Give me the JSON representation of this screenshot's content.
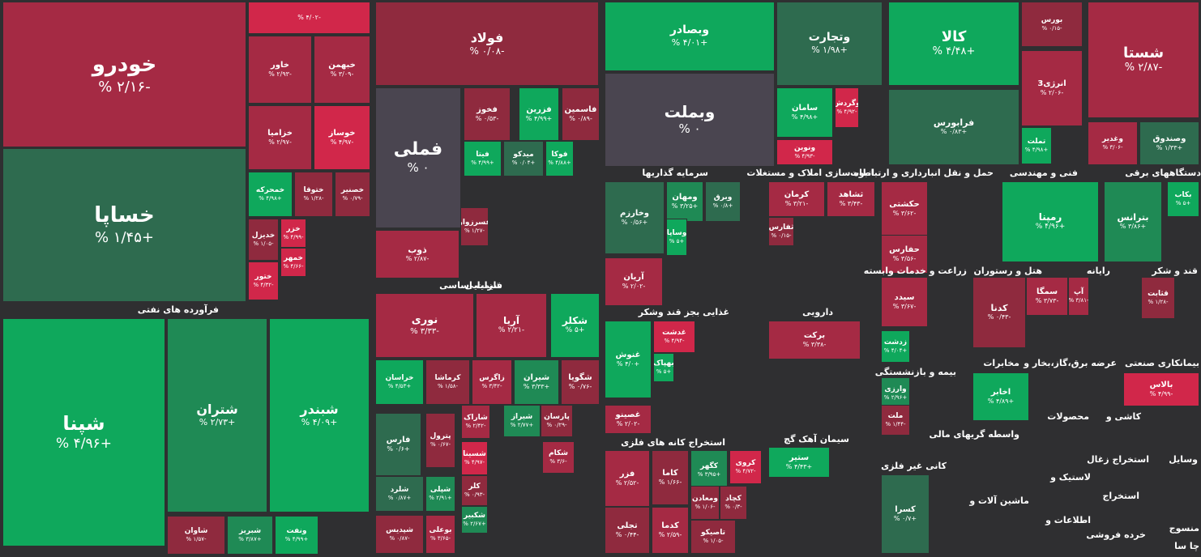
{
  "colors": {
    "green": "#0fa85c",
    "green_mid": "#1f8a55",
    "green_dark": "#2e6b4f",
    "red": "#d1274a",
    "red_mid": "#a52a44",
    "red_dark": "#8f2a3e",
    "neutral": "#4a4550",
    "bg": "#2f2f31"
  },
  "chart_data": {
    "type": "heatmap",
    "title": "",
    "sectors": [
      {
        "name": "فرآورده های نفتی"
      },
      {
        "name": "فلزات اساسی"
      },
      {
        "name": "شیمیایی"
      },
      {
        "name": "سرمایه گذاریها"
      },
      {
        "name": "انبوه سازی املاک و مستغلات"
      },
      {
        "name": "حمل و نقل انبارداری و ارتباطات"
      },
      {
        "name": "فنی و مهندسی"
      },
      {
        "name": "دستگاههای برقی"
      },
      {
        "name": "غذایی بجز قند وشکر"
      },
      {
        "name": "دارویی"
      },
      {
        "name": "استخراج کانه های فلزی"
      },
      {
        "name": "سیمان آهک گچ"
      },
      {
        "name": "زراعت و خدمات وابسته"
      },
      {
        "name": "هتل و رستوران"
      },
      {
        "name": "رایانه"
      },
      {
        "name": "قند و شکر"
      },
      {
        "name": "بیمه و بازنشستگی"
      },
      {
        "name": "مخابرات"
      },
      {
        "name": "عرضه برق،گاز،بخار و"
      },
      {
        "name": "بیمانکاری صنعتی"
      },
      {
        "name": "محصولات"
      },
      {
        "name": "کاشی و"
      },
      {
        "name": "واسطه گریهای مالی"
      },
      {
        "name": "کانی غیر فلزی"
      },
      {
        "name": "استخراج زغال"
      },
      {
        "name": "لاستیک و"
      },
      {
        "name": "وسایل"
      },
      {
        "name": "ماشین آلات و"
      },
      {
        "name": "استخراج"
      },
      {
        "name": "اطلاعات و"
      },
      {
        "name": "خرده فروشی"
      },
      {
        "name": "منسوج"
      },
      {
        "name": "چا سا"
      }
    ],
    "tiles": [
      {
        "symbol": "خودرو",
        "change": "-۲/۱۶ %",
        "value": -2.16
      },
      {
        "symbol": "خساپا",
        "change": "+۱/۴۵ %",
        "value": 1.45
      },
      {
        "symbol": "",
        "change": "-۴/۰۲ %",
        "value": -4.02
      },
      {
        "symbol": "خاور",
        "change": "-۲/۹۳ %",
        "value": -2.93
      },
      {
        "symbol": "خبهمن",
        "change": "-۳/۰۹ %",
        "value": -3.09
      },
      {
        "symbol": "خزامیا",
        "change": "-۲/۹۷ %",
        "value": -2.97
      },
      {
        "symbol": "خوساز",
        "change": "-۴/۹۷ %",
        "value": -4.97
      },
      {
        "symbol": "خمحرکه",
        "change": "+۴/۹۸ %",
        "value": 4.98
      },
      {
        "symbol": "ختوقا",
        "change": "-۱/۲۸ %",
        "value": -1.28
      },
      {
        "symbol": "خصنیر",
        "change": "-۰/۷۹ %",
        "value": -0.79
      },
      {
        "symbol": "خدیزل",
        "change": "-۱/۰۵ %",
        "value": -1.05
      },
      {
        "symbol": "خزر",
        "change": "-۴/۹۹ %",
        "value": -4.99
      },
      {
        "symbol": "خمهر",
        "change": "-۴/۶۶ %",
        "value": -4.66
      },
      {
        "symbol": "ختور",
        "change": "-۴/۳۲ %",
        "value": -4.32
      },
      {
        "symbol": "فولاد",
        "change": "-۰/۰۸ %",
        "value": -0.08
      },
      {
        "symbol": "فملی",
        "change": "۰ %",
        "value": 0
      },
      {
        "symbol": "فخوز",
        "change": "-۰/۵۳ %",
        "value": -0.53
      },
      {
        "symbol": "فزرین",
        "change": "+۴/۹۹ %",
        "value": 4.99
      },
      {
        "symbol": "فاسمین",
        "change": "-۰/۸۹ %",
        "value": -0.89
      },
      {
        "symbol": "فیتا",
        "change": "+۴/۹۹ %",
        "value": 4.99
      },
      {
        "symbol": "میدکو",
        "change": "+۰/۰۴ %",
        "value": 0.04
      },
      {
        "symbol": "فوکا",
        "change": "+۴/۸۸ %",
        "value": 4.88
      },
      {
        "symbol": "فسرزوار",
        "change": "-۱/۲۷ %",
        "value": -1.27
      },
      {
        "symbol": "ذوب",
        "change": "-۲/۸۷ %",
        "value": -2.87
      },
      {
        "symbol": "وبصادر",
        "change": "+۴/۰۱ %",
        "value": 4.01
      },
      {
        "symbol": "وبملت",
        "change": "۰ %",
        "value": 0
      },
      {
        "symbol": "وتجارت",
        "change": "+۱/۹۸ %",
        "value": 1.98
      },
      {
        "symbol": "سامان",
        "change": "+۴/۹۸ %",
        "value": 4.98
      },
      {
        "symbol": "وگردش",
        "change": "-۴/۹۲ %",
        "value": -4.92
      },
      {
        "symbol": "ونوین",
        "change": "-۴/۹۳ %",
        "value": -4.93
      },
      {
        "symbol": "کالا",
        "change": "+۴/۴۸ %",
        "value": 4.48
      },
      {
        "symbol": "فرابورس",
        "change": "+۰/۸۳ %",
        "value": 0.83
      },
      {
        "symbol": "بورس",
        "change": "-۰/۱۵ %",
        "value": -0.15
      },
      {
        "symbol": "انرژی3",
        "change": "-۲/۰۶ %",
        "value": -2.06
      },
      {
        "symbol": "تملت",
        "change": "+۴/۹۸ %",
        "value": 4.98
      },
      {
        "symbol": "شستا",
        "change": "-۲/۸۷ %",
        "value": -2.87
      },
      {
        "symbol": "وغدیر",
        "change": "-۳/۰۶ %",
        "value": -3.06
      },
      {
        "symbol": "وصندوق",
        "change": "+۱/۳۳ %",
        "value": 1.33
      },
      {
        "symbol": "شپنا",
        "change": "+۴/۹۶ %",
        "value": 4.96
      },
      {
        "symbol": "شتران",
        "change": "+۲/۷۳ %",
        "value": 2.73
      },
      {
        "symbol": "شبندر",
        "change": "+۴/۰۹ %",
        "value": 4.09
      },
      {
        "symbol": "شاوان",
        "change": "-۱/۵۷ %",
        "value": -1.57
      },
      {
        "symbol": "شبریز",
        "change": "+۳/۸۷ %",
        "value": 3.87
      },
      {
        "symbol": "ونفت",
        "change": "+۴/۹۹ %",
        "value": 4.99
      },
      {
        "symbol": "نوری",
        "change": "-۳/۳۳ %",
        "value": -3.33
      },
      {
        "symbol": "آریا",
        "change": "-۲/۲۱ %",
        "value": -2.21
      },
      {
        "symbol": "شکلر",
        "change": "+۵ %",
        "value": 5
      },
      {
        "symbol": "خراسان",
        "change": "+۴/۵۳ %",
        "value": 4.53
      },
      {
        "symbol": "کرماشا",
        "change": "-۱/۵۸ %",
        "value": -1.58
      },
      {
        "symbol": "زاگرس",
        "change": "-۳/۴۲ %",
        "value": -3.42
      },
      {
        "symbol": "شیران",
        "change": "+۳/۳۳ %",
        "value": 3.33
      },
      {
        "symbol": "شگویا",
        "change": "-۰/۷۶ %",
        "value": -0.76
      },
      {
        "symbol": "فارس",
        "change": "+۰/۶ %",
        "value": 0.6
      },
      {
        "symbol": "پترول",
        "change": "-۰/۶۷ %",
        "value": -0.67
      },
      {
        "symbol": "شاراک",
        "change": "-۲/۴۲ %",
        "value": -2.42
      },
      {
        "symbol": "شیراز",
        "change": "+۲/۷۷ %",
        "value": 2.77
      },
      {
        "symbol": "پارسان",
        "change": "-۰/۲۹ %",
        "value": -0.29
      },
      {
        "symbol": "شسینا",
        "change": "-۴/۹۷ %",
        "value": -4.97
      },
      {
        "symbol": "شکام",
        "change": "-۳/۶ %",
        "value": -3.6
      },
      {
        "symbol": "شلرد",
        "change": "+۰/۸۷ %",
        "value": 0.87
      },
      {
        "symbol": "شپلی",
        "change": "+۲/۹۱ %",
        "value": 2.91
      },
      {
        "symbol": "کلر",
        "change": "-۰/۹۳ %",
        "value": -0.93
      },
      {
        "symbol": "شکبیر",
        "change": "+۲/۶۷ %",
        "value": 2.67
      },
      {
        "symbol": "شپدیس",
        "change": "-۰/۸۷ %",
        "value": -0.87
      },
      {
        "symbol": "بوعلی",
        "change": "-۳/۶۵ %",
        "value": -3.65
      },
      {
        "symbol": "وخارزم",
        "change": "+۰/۵۶ %",
        "value": 0.56
      },
      {
        "symbol": "ومهان",
        "change": "+۳/۲۵ %",
        "value": 3.25
      },
      {
        "symbol": "وبرق",
        "change": "+۰/۸ %",
        "value": 0.8
      },
      {
        "symbol": "وساپا",
        "change": "+۵ %",
        "value": 5
      },
      {
        "symbol": "آریان",
        "change": "-۲/۰۲ %",
        "value": -2.02
      },
      {
        "symbol": "کرمان",
        "change": "-۳/۲۱ %",
        "value": -3.21
      },
      {
        "symbol": "ثشاهد",
        "change": "-۳/۴۳ %",
        "value": -3.43
      },
      {
        "symbol": "ثفارس",
        "change": "-۰/۱۵ %",
        "value": -0.15
      },
      {
        "symbol": "حکشتی",
        "change": "-۳/۶۲ %",
        "value": -3.62
      },
      {
        "symbol": "حفارس",
        "change": "-۳/۵۶ %",
        "value": -3.56
      },
      {
        "symbol": "رمپنا",
        "change": "+۴/۹۶ %",
        "value": 4.96
      },
      {
        "symbol": "بترانس",
        "change": "+۳/۸۶ %",
        "value": 3.86
      },
      {
        "symbol": "بکاب",
        "change": "+۵ %",
        "value": 5
      },
      {
        "symbol": "غنوش",
        "change": "+۴/۰ %",
        "value": 4.0
      },
      {
        "symbol": "غدشت",
        "change": "-۴/۹۴ %",
        "value": -4.94
      },
      {
        "symbol": "بهپاک",
        "change": "+۵ %",
        "value": 5
      },
      {
        "symbol": "غصینو",
        "change": "-۲/۰۲ %",
        "value": -2.02
      },
      {
        "symbol": "برکت",
        "change": "-۳/۳۸ %",
        "value": -3.38
      },
      {
        "symbol": "فزر",
        "change": "-۲/۵۲ %",
        "value": -2.52
      },
      {
        "symbol": "کاما",
        "change": "-۱/۶۶ %",
        "value": -1.66
      },
      {
        "symbol": "کگهر",
        "change": "+۳/۹۵ %",
        "value": 3.95
      },
      {
        "symbol": "کروی",
        "change": "-۴/۷۲ %",
        "value": -4.72
      },
      {
        "symbol": "ومعادن",
        "change": "-۱/۰۶ %",
        "value": -1.06
      },
      {
        "symbol": "کچاد",
        "change": "-۰/۳ %",
        "value": -0.3
      },
      {
        "symbol": "تجلی",
        "change": "-۰/۴۴ %",
        "value": -0.44
      },
      {
        "symbol": "کدما",
        "change": "-۲/۵۹ %",
        "value": -2.59
      },
      {
        "symbol": "تاصیکو",
        "change": "-۱/۰۵ %",
        "value": -1.05
      },
      {
        "symbol": "ستیر",
        "change": "+۴/۴۳ %",
        "value": 4.43
      },
      {
        "symbol": "سیدد",
        "change": "-۳/۶۷ %",
        "value": -3.67
      },
      {
        "symbol": "زدشت",
        "change": "+۴/۰۴ %",
        "value": 4.04
      },
      {
        "symbol": "کدنا",
        "change": "-۰/۴۳ %",
        "value": -0.43
      },
      {
        "symbol": "سمگا",
        "change": "-۳/۷۳ %",
        "value": -3.73
      },
      {
        "symbol": "آپ",
        "change": "-۳/۸۱ %",
        "value": -3.81
      },
      {
        "symbol": "قثابت",
        "change": "-۱/۲۸ %",
        "value": -1.28
      },
      {
        "symbol": "وارزی",
        "change": "+۲/۹۶ %",
        "value": 2.96
      },
      {
        "symbol": "ملت",
        "change": "-۱/۴۴ %",
        "value": -1.44
      },
      {
        "symbol": "اخابر",
        "change": "+۴/۸۹ %",
        "value": 4.89
      },
      {
        "symbol": "بالاس",
        "change": "-۴/۹۹ %",
        "value": -4.99
      },
      {
        "symbol": "کسرا",
        "change": "+۰/۷ %",
        "value": 0.7
      }
    ]
  }
}
